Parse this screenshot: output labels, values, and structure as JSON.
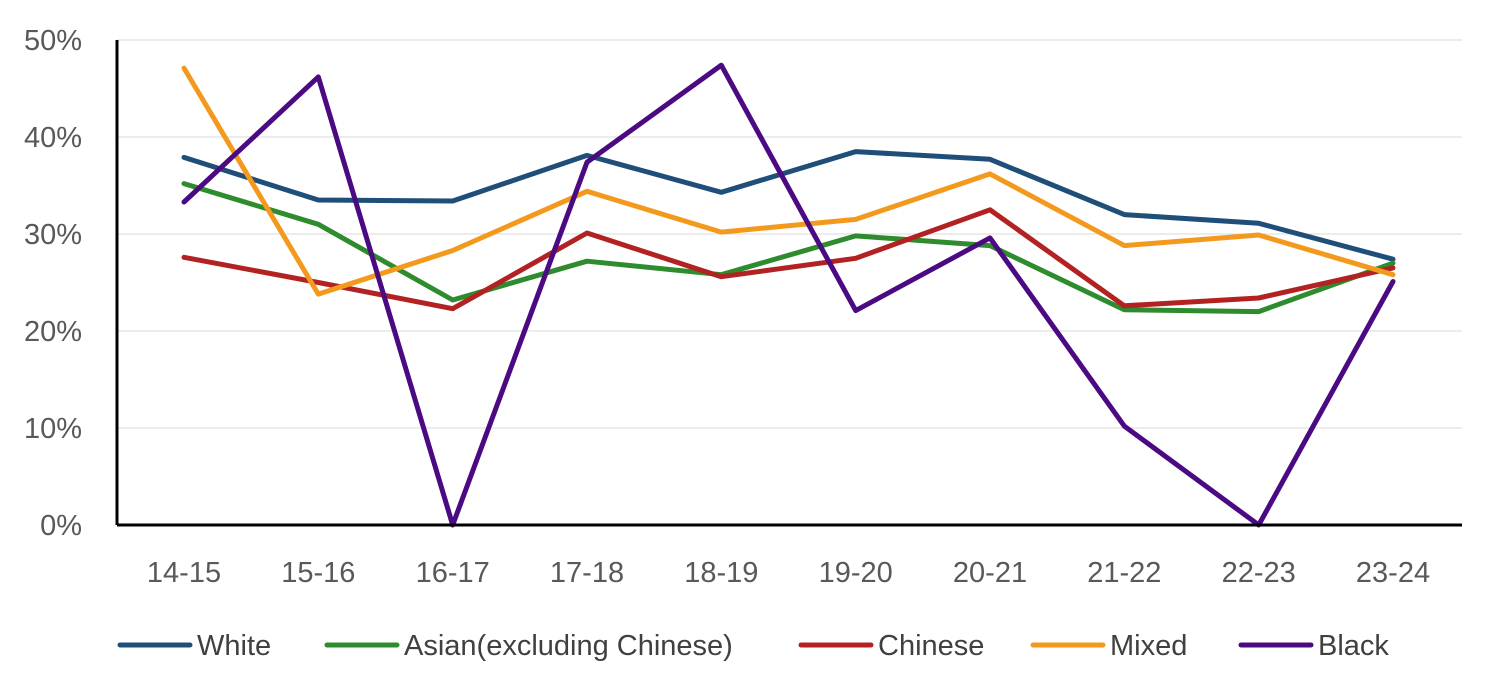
{
  "chart_data": {
    "type": "line",
    "title": "",
    "xlabel": "",
    "ylabel": "",
    "categories": [
      "14-15",
      "15-16",
      "16-17",
      "17-18",
      "18-19",
      "19-20",
      "20-21",
      "21-22",
      "22-23",
      "23-24"
    ],
    "ylim": [
      0,
      50
    ],
    "y_ticks": [
      0,
      10,
      20,
      30,
      40,
      50
    ],
    "y_tick_labels": [
      "0%",
      "10%",
      "20%",
      "30%",
      "40%",
      "50%"
    ],
    "grid": true,
    "legend_position": "bottom",
    "series": [
      {
        "name": "White",
        "color": "#1f4e79",
        "values": [
          37.9,
          33.5,
          33.4,
          38.1,
          34.3,
          38.5,
          37.7,
          32.0,
          31.1,
          27.4
        ]
      },
      {
        "name": "Asian(excluding Chinese)",
        "color": "#2e8b2e",
        "values": [
          35.2,
          31.0,
          23.2,
          27.2,
          25.8,
          29.8,
          28.8,
          22.2,
          22.0,
          27.0
        ]
      },
      {
        "name": "Chinese",
        "color": "#b22222",
        "values": [
          27.6,
          25.0,
          22.3,
          30.1,
          25.6,
          27.5,
          32.5,
          22.6,
          23.4,
          26.5
        ]
      },
      {
        "name": "Mixed",
        "color": "#f39a1e",
        "values": [
          47.1,
          23.8,
          28.3,
          34.4,
          30.2,
          31.5,
          36.2,
          28.8,
          29.9,
          25.8
        ]
      },
      {
        "name": "Black",
        "color": "#4b0a82",
        "values": [
          33.3,
          46.2,
          0,
          37.4,
          47.4,
          22.1,
          29.6,
          10.2,
          0,
          25.1
        ]
      }
    ]
  }
}
